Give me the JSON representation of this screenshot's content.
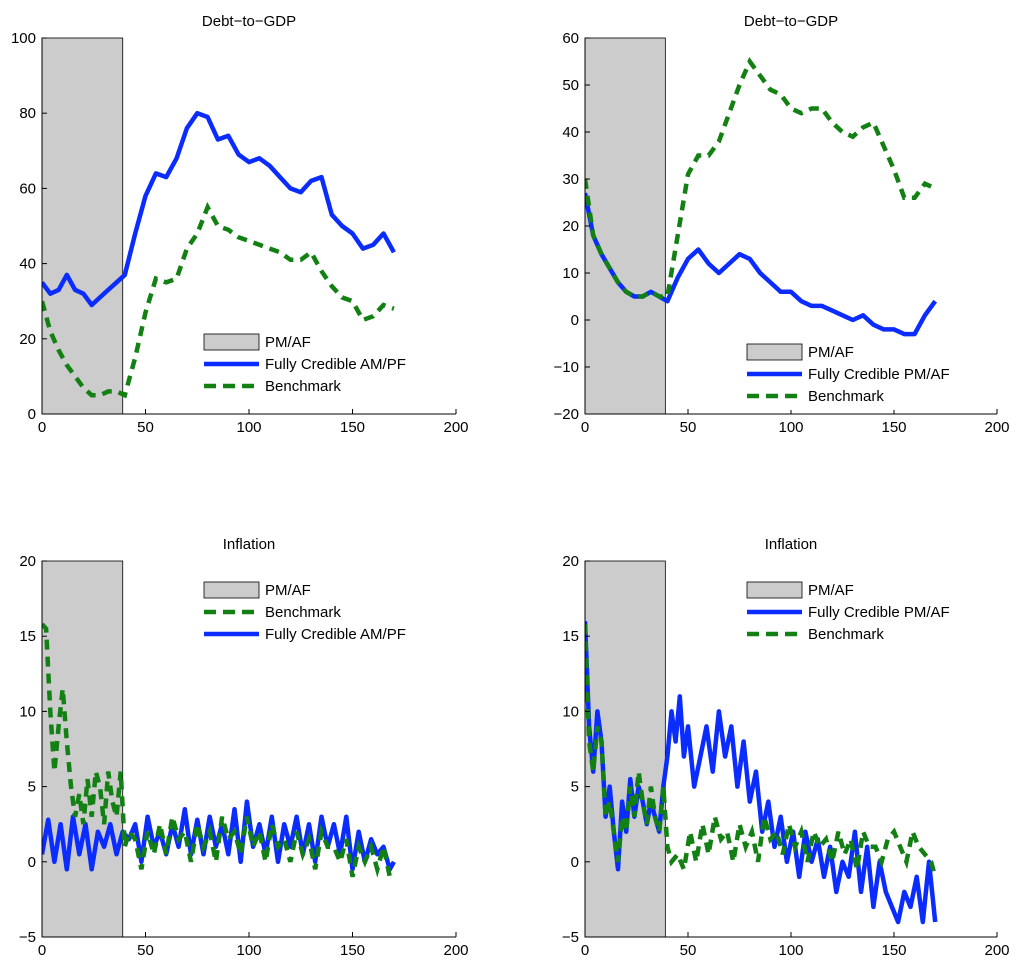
{
  "chart_data": [
    {
      "type": "line",
      "title": "Debt−to−GDP",
      "xlim": [
        0,
        200
      ],
      "ylim": [
        0,
        100
      ],
      "xticks": [
        "0",
        "50",
        "100",
        "150",
        "200"
      ],
      "yticks": [
        "0",
        "20",
        "40",
        "60",
        "80",
        "100"
      ],
      "shaded_region": {
        "x": [
          0,
          39
        ],
        "label": "PM/AF",
        "color": "#cccccc"
      },
      "legend": {
        "placement": "bottom-right",
        "entries": [
          "PM/AF",
          "Fully Credible AM/PF",
          "Benchmark"
        ]
      },
      "series": [
        {
          "name": "Fully Credible AM/PF",
          "color": "#0a2cff",
          "style": "solid",
          "x": [
            0,
            4,
            8,
            12,
            16,
            20,
            24,
            28,
            32,
            36,
            40,
            45,
            50,
            55,
            60,
            65,
            70,
            75,
            80,
            85,
            90,
            95,
            100,
            105,
            110,
            115,
            120,
            125,
            130,
            135,
            140,
            145,
            150,
            155,
            160,
            165,
            170
          ],
          "y": [
            35,
            32,
            33,
            37,
            33,
            32,
            29,
            31,
            33,
            35,
            37,
            48,
            58,
            64,
            63,
            68,
            76,
            80,
            79,
            73,
            74,
            69,
            67,
            68,
            66,
            63,
            60,
            59,
            62,
            63,
            53,
            50,
            48,
            44,
            45,
            48,
            43
          ]
        },
        {
          "name": "Benchmark",
          "color": "#138013",
          "style": "dashed",
          "x": [
            0,
            4,
            8,
            12,
            16,
            20,
            24,
            28,
            32,
            36,
            40,
            45,
            50,
            55,
            60,
            65,
            70,
            75,
            80,
            85,
            90,
            95,
            100,
            105,
            110,
            115,
            120,
            125,
            130,
            135,
            140,
            145,
            150,
            155,
            160,
            165,
            170
          ],
          "y": [
            30,
            22,
            17,
            13,
            10,
            7,
            5,
            5,
            6,
            6,
            5,
            15,
            27,
            36,
            35,
            36,
            44,
            48,
            55,
            50,
            49,
            47,
            46,
            45,
            44,
            43,
            41,
            41,
            43,
            38,
            34,
            31,
            30,
            25,
            26,
            29,
            28
          ]
        }
      ]
    },
    {
      "type": "line",
      "title": "Debt−to−GDP",
      "xlim": [
        0,
        200
      ],
      "ylim": [
        -20,
        60
      ],
      "xticks": [
        "0",
        "50",
        "100",
        "150",
        "200"
      ],
      "yticks": [
        "−20",
        "−10",
        "0",
        "10",
        "20",
        "30",
        "40",
        "50",
        "60"
      ],
      "shaded_region": {
        "x": [
          0,
          39
        ],
        "label": "PM/AF",
        "color": "#cccccc"
      },
      "legend": {
        "placement": "bottom-right",
        "entries": [
          "PM/AF",
          "Fully Credible PM/AF",
          "Benchmark"
        ]
      },
      "series": [
        {
          "name": "Fully Credible PM/AF",
          "color": "#0a2cff",
          "style": "solid",
          "x": [
            0,
            4,
            8,
            12,
            16,
            20,
            24,
            28,
            32,
            36,
            40,
            45,
            50,
            55,
            60,
            65,
            70,
            75,
            80,
            85,
            90,
            95,
            100,
            105,
            110,
            115,
            120,
            125,
            130,
            135,
            140,
            145,
            150,
            155,
            160,
            165,
            170
          ],
          "y": [
            27,
            18,
            14,
            11,
            8,
            6,
            5,
            5,
            6,
            5,
            4,
            9,
            13,
            15,
            12,
            10,
            12,
            14,
            13,
            10,
            8,
            6,
            6,
            4,
            3,
            3,
            2,
            1,
            0,
            1,
            -1,
            -2,
            -2,
            -3,
            -3,
            1,
            4
          ]
        },
        {
          "name": "Benchmark",
          "color": "#138013",
          "style": "dashed",
          "x": [
            0,
            4,
            8,
            12,
            16,
            20,
            24,
            28,
            32,
            36,
            40,
            45,
            50,
            55,
            60,
            65,
            70,
            75,
            80,
            85,
            90,
            95,
            100,
            105,
            110,
            115,
            120,
            125,
            130,
            135,
            140,
            145,
            150,
            155,
            160,
            165,
            170
          ],
          "y": [
            30,
            18,
            14,
            11,
            8,
            6,
            5,
            5,
            6,
            5,
            5,
            18,
            31,
            35,
            35,
            38,
            44,
            50,
            55,
            52,
            49,
            48,
            45,
            44,
            45,
            45,
            42,
            40,
            39,
            41,
            42,
            37,
            32,
            26,
            26,
            29,
            28
          ]
        }
      ]
    },
    {
      "type": "line",
      "title": "Inflation",
      "xlim": [
        0,
        200
      ],
      "ylim": [
        -5,
        20
      ],
      "xticks": [
        "0",
        "50",
        "100",
        "150",
        "200"
      ],
      "yticks": [
        "−5",
        "0",
        "5",
        "10",
        "15",
        "20"
      ],
      "shaded_region": {
        "x": [
          0,
          39
        ],
        "label": "PM/AF",
        "color": "#cccccc"
      },
      "legend": {
        "placement": "top-right",
        "entries": [
          "PM/AF",
          "Benchmark",
          "Fully Credible AM/PF"
        ]
      },
      "series": [
        {
          "name": "Fully Credible AM/PF",
          "color": "#0a2cff",
          "style": "solid",
          "x": [
            0,
            3,
            6,
            9,
            12,
            15,
            18,
            21,
            24,
            27,
            30,
            33,
            36,
            39,
            42,
            45,
            48,
            51,
            54,
            57,
            60,
            63,
            66,
            69,
            72,
            75,
            78,
            81,
            84,
            87,
            90,
            93,
            96,
            99,
            102,
            105,
            108,
            111,
            114,
            117,
            120,
            123,
            126,
            129,
            132,
            135,
            138,
            141,
            144,
            147,
            150,
            153,
            156,
            159,
            162,
            165,
            168,
            170
          ],
          "y": [
            0.5,
            2.8,
            0,
            2.5,
            -0.5,
            3,
            0.5,
            2.5,
            -0.5,
            2,
            1,
            2.5,
            0.5,
            2,
            1.5,
            2.5,
            0,
            3,
            1,
            2,
            0.5,
            2.5,
            1,
            3.5,
            0.5,
            2.8,
            0.5,
            3,
            1,
            2.5,
            0.5,
            3.5,
            0,
            4,
            1,
            2.5,
            0.5,
            3,
            0,
            2.5,
            1,
            3,
            0.5,
            2.5,
            0,
            3,
            1,
            2.5,
            0.5,
            3,
            -0.5,
            2,
            0,
            1.5,
            0.5,
            1,
            -0.5,
            0
          ]
        },
        {
          "name": "Benchmark",
          "color": "#138013",
          "style": "dashed",
          "x": [
            0,
            2,
            4,
            6,
            8,
            10,
            12,
            14,
            16,
            18,
            20,
            22,
            24,
            26,
            28,
            30,
            32,
            34,
            36,
            38,
            40,
            42,
            45,
            48,
            51,
            54,
            57,
            60,
            63,
            66,
            69,
            72,
            75,
            78,
            81,
            84,
            87,
            90,
            93,
            96,
            99,
            102,
            105,
            108,
            111,
            114,
            117,
            120,
            123,
            126,
            129,
            132,
            135,
            138,
            141,
            144,
            147,
            150,
            153,
            156,
            159,
            162,
            165,
            168,
            170
          ],
          "y": [
            15.8,
            15.5,
            10,
            6,
            9,
            11.5,
            8,
            5,
            3,
            4.5,
            2.5,
            5.5,
            3,
            6,
            5,
            2.5,
            6,
            4,
            3,
            6,
            1,
            2,
            1.5,
            -0.5,
            2,
            0.5,
            2.5,
            0.5,
            3,
            1.5,
            2,
            0,
            2.5,
            1,
            2,
            0,
            3,
            1.5,
            2,
            0.5,
            3,
            1,
            2,
            0,
            2.5,
            1,
            1.5,
            0,
            2,
            0.5,
            1.5,
            -0.5,
            2,
            1,
            1,
            0,
            1.5,
            -1,
            1,
            0,
            1,
            -0.5,
            1,
            -1,
            -1
          ]
        }
      ]
    },
    {
      "type": "line",
      "title": "Inflation",
      "xlim": [
        0,
        200
      ],
      "ylim": [
        -5,
        20
      ],
      "xticks": [
        "0",
        "50",
        "100",
        "150",
        "200"
      ],
      "yticks": [
        "−5",
        "0",
        "5",
        "10",
        "15",
        "20"
      ],
      "shaded_region": {
        "x": [
          0,
          39
        ],
        "label": "PM/AF",
        "color": "#cccccc"
      },
      "legend": {
        "placement": "top-right",
        "entries": [
          "PM/AF",
          "Fully Credible PM/AF",
          "Benchmark"
        ]
      },
      "series": [
        {
          "name": "Fully Credible PM/AF",
          "color": "#0a2cff",
          "style": "solid",
          "x": [
            0,
            2,
            4,
            6,
            8,
            10,
            12,
            14,
            16,
            18,
            20,
            22,
            24,
            26,
            28,
            30,
            32,
            34,
            36,
            38,
            40,
            42,
            44,
            46,
            48,
            50,
            53,
            56,
            59,
            62,
            65,
            68,
            71,
            74,
            77,
            80,
            83,
            86,
            89,
            92,
            95,
            98,
            101,
            104,
            107,
            110,
            113,
            116,
            119,
            122,
            125,
            128,
            131,
            134,
            137,
            140,
            143,
            146,
            149,
            152,
            155,
            158,
            161,
            164,
            167,
            170
          ],
          "y": [
            16,
            9,
            6,
            10,
            8,
            3,
            5,
            2,
            -0.5,
            4,
            2,
            5.5,
            3,
            5,
            4,
            2.5,
            4,
            3,
            2,
            5,
            7,
            10,
            8,
            11,
            7,
            9,
            5,
            7,
            9,
            6,
            10,
            7,
            9,
            5,
            8,
            4,
            6,
            2,
            4,
            1,
            3,
            0,
            2,
            -1,
            2,
            0,
            1.5,
            -1,
            1,
            -2,
            0,
            -1,
            2,
            -2,
            1,
            -3,
            0,
            -2,
            -3,
            -4,
            -2,
            -3,
            -1,
            -4,
            0,
            -4
          ]
        },
        {
          "name": "Benchmark",
          "color": "#138013",
          "style": "dashed",
          "x": [
            0,
            2,
            4,
            6,
            8,
            10,
            12,
            14,
            16,
            18,
            20,
            22,
            24,
            26,
            28,
            30,
            32,
            34,
            36,
            38,
            40,
            42,
            45,
            48,
            51,
            54,
            57,
            60,
            63,
            66,
            69,
            72,
            75,
            78,
            81,
            84,
            87,
            90,
            93,
            96,
            99,
            102,
            105,
            108,
            111,
            114,
            117,
            120,
            123,
            126,
            129,
            132,
            135,
            138,
            141,
            144,
            147,
            150,
            153,
            156,
            159,
            162,
            165,
            168,
            170
          ],
          "y": [
            15.8,
            8,
            6,
            9,
            8,
            3,
            4,
            2,
            0,
            3,
            2,
            5,
            3,
            6,
            4,
            2.5,
            5,
            3,
            2,
            5,
            1,
            0,
            0.5,
            -0.5,
            2,
            0,
            2.5,
            0.5,
            3,
            1.5,
            2,
            0,
            2.5,
            1,
            2,
            0,
            3,
            1.5,
            2,
            0.5,
            2.5,
            1,
            2,
            0,
            2,
            1,
            1.5,
            0,
            2,
            0.5,
            1.5,
            -0.5,
            2,
            1,
            1,
            0,
            1.5,
            2,
            1,
            0,
            2,
            1,
            0.5,
            0,
            -1
          ]
        }
      ]
    }
  ]
}
